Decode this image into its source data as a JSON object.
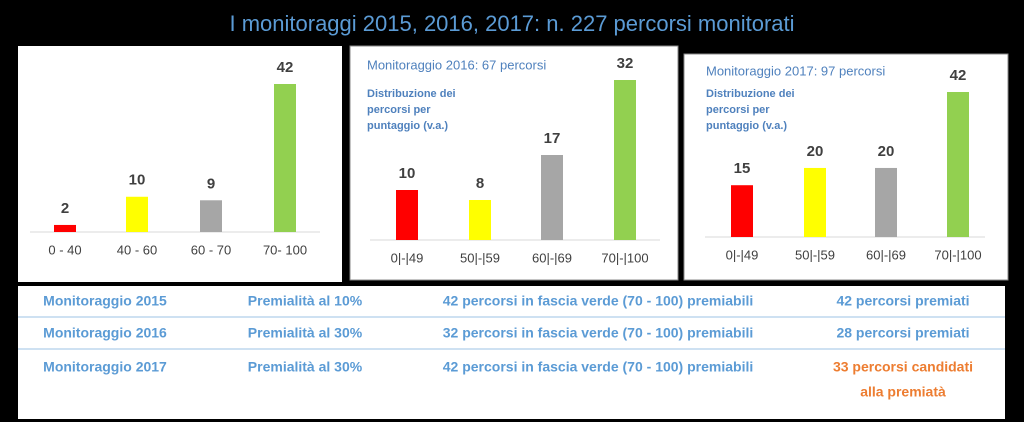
{
  "title": "I monitoraggi 2015, 2016, 2017: n. 227 percorsi monitorati",
  "chart_data": [
    {
      "type": "bar",
      "categories": [
        "0 - 40",
        "40 - 60",
        "60 - 70",
        "70- 100"
      ],
      "values": [
        2,
        10,
        9,
        42
      ],
      "colors": [
        "#ff0000",
        "#ffff00",
        "#a6a6a6",
        "#92d050"
      ],
      "ylim": [
        0,
        42
      ]
    },
    {
      "type": "bar",
      "subtitle": "Monitoraggio 2016: 67 percorsi",
      "note": [
        "Distribuzione dei",
        "percorsi per",
        "puntaggio (v.a.)"
      ],
      "categories": [
        "0|-|49",
        "50|-|59",
        "60|-|69",
        "70|-|100"
      ],
      "values": [
        10,
        8,
        17,
        32
      ],
      "colors": [
        "#ff0000",
        "#ffff00",
        "#a6a6a6",
        "#92d050"
      ],
      "ylim": [
        0,
        32
      ]
    },
    {
      "type": "bar",
      "subtitle": "Monitoraggio 2017: 97 percorsi",
      "note": [
        "Distribuzione dei",
        "percorsi per",
        "puntaggio (v.a.)"
      ],
      "categories": [
        "0|-|49",
        "50|-|59",
        "60|-|69",
        "70|-|100"
      ],
      "values": [
        15,
        20,
        20,
        42
      ],
      "colors": [
        "#ff0000",
        "#ffff00",
        "#a6a6a6",
        "#92d050"
      ],
      "ylim": [
        0,
        42
      ]
    }
  ],
  "table": {
    "rows": [
      [
        "Monitoraggio 2015",
        "Premialità al 10%",
        "42 percorsi in fascia verde (70 - 100) premiabili",
        "42 percorsi premiati"
      ],
      [
        "Monitoraggio 2016",
        "Premialità al 30%",
        "32 percorsi in fascia verde (70 - 100) premiabili",
        "28 percorsi premiati"
      ],
      [
        "Monitoraggio 2017",
        "Premialità al 30%",
        "42 percorsi in fascia verde (70 - 100) premiabili",
        [
          "33 percorsi candidati",
          "alla premiatà"
        ]
      ]
    ]
  }
}
